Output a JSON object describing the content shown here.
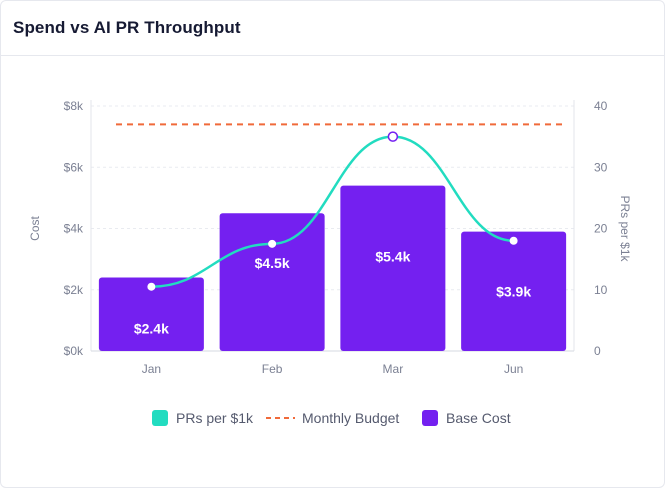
{
  "header": {
    "title": "Spend vs AI PR Throughput"
  },
  "colors": {
    "bar": "#7420f0",
    "line": "#22dcc0",
    "budget": "#f06a3a",
    "grid": "#e9ebf0",
    "marker_border": "#7420f0"
  },
  "chart_data": {
    "type": "bar",
    "categories": [
      "Jan",
      "Feb",
      "Mar",
      "Jun"
    ],
    "series": [
      {
        "name": "Base Cost",
        "type": "bar",
        "axis": "left",
        "values": [
          2400,
          4500,
          5400,
          3900
        ],
        "labels": [
          "$2.4k",
          "$4.5k",
          "$5.4k",
          "$3.9k"
        ]
      },
      {
        "name": "PRs per $1k",
        "type": "line",
        "axis": "right",
        "smooth": true,
        "values": [
          10.5,
          17.5,
          35,
          18
        ]
      },
      {
        "name": "Monthly Budget",
        "type": "line",
        "style": "dashed",
        "axis": "left",
        "value": 7400
      }
    ],
    "y_left": {
      "label": "Cost",
      "range": [
        0,
        8000
      ],
      "ticks": [
        0,
        2000,
        4000,
        6000,
        8000
      ],
      "tick_labels": [
        "$0k",
        "$2k",
        "$4k",
        "$6k",
        "$8k"
      ]
    },
    "y_right": {
      "label": "PRs per $1k",
      "range": [
        0,
        40
      ],
      "ticks": [
        0,
        10,
        20,
        30,
        40
      ],
      "tick_labels": [
        "0",
        "10",
        "20",
        "30",
        "40"
      ]
    },
    "grid": true,
    "legend": {
      "position": "bottom",
      "items": [
        "PRs per $1k",
        "Monthly Budget",
        "Base Cost"
      ]
    }
  }
}
